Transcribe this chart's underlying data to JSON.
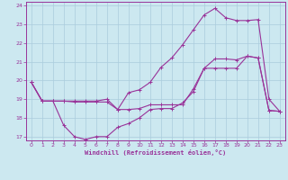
{
  "xlabel": "Windchill (Refroidissement éolien,°C)",
  "bg_color": "#cce8f0",
  "grid_color": "#aaccdd",
  "line_color": "#993399",
  "xlim": [
    -0.5,
    23.5
  ],
  "ylim": [
    16.8,
    24.2
  ],
  "xticks": [
    0,
    1,
    2,
    3,
    4,
    5,
    6,
    7,
    8,
    9,
    10,
    11,
    12,
    13,
    14,
    15,
    16,
    17,
    18,
    19,
    20,
    21,
    22,
    23
  ],
  "yticks": [
    17,
    18,
    19,
    20,
    21,
    22,
    23,
    24
  ],
  "series": [
    [
      19.9,
      18.9,
      18.9,
      18.9,
      18.85,
      18.85,
      18.85,
      18.85,
      18.45,
      18.45,
      18.5,
      18.7,
      18.7,
      18.7,
      18.7,
      19.55,
      20.65,
      21.15,
      21.15,
      21.1,
      21.3,
      21.2,
      18.4,
      18.35
    ],
    [
      19.9,
      18.9,
      18.9,
      17.6,
      17.0,
      16.85,
      17.0,
      17.0,
      17.5,
      17.7,
      18.0,
      18.45,
      18.5,
      18.5,
      18.8,
      19.4,
      20.65,
      20.65,
      20.65,
      20.65,
      21.3,
      21.2,
      18.4,
      18.35
    ],
    [
      19.9,
      18.9,
      18.9,
      18.9,
      18.9,
      18.9,
      18.9,
      19.0,
      18.45,
      19.35,
      19.5,
      19.9,
      20.7,
      21.2,
      21.9,
      22.7,
      23.5,
      23.85,
      23.35,
      23.2,
      23.2,
      23.25,
      19.0,
      18.35
    ]
  ]
}
